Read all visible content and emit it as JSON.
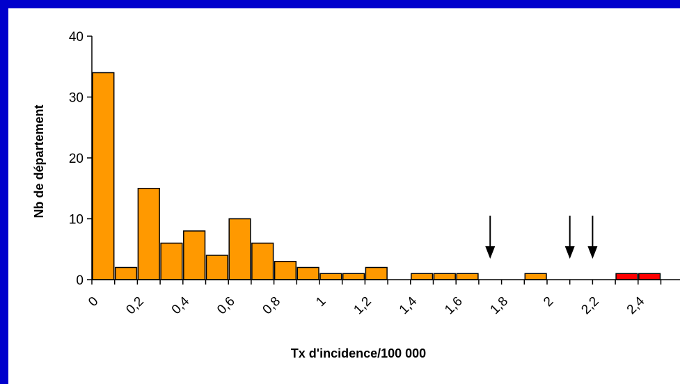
{
  "chart_data": {
    "type": "bar",
    "title": "",
    "xlabel": "Tx d'incidence/100 000",
    "ylabel": "Nb de département",
    "ylim": [
      0,
      40
    ],
    "y_ticks": [
      "0",
      "10",
      "20",
      "30",
      "40"
    ],
    "x_ticks": [
      "0",
      "0,2",
      "0,4",
      "0,6",
      "0,8",
      "1",
      "1,2",
      "1,4",
      "1,6",
      "1,8",
      "2",
      "2,2",
      "2,4"
    ],
    "bin_width": 0.1,
    "bins": [
      {
        "x": 0.0,
        "value": 34,
        "color": "#FF9900"
      },
      {
        "x": 0.1,
        "value": 2,
        "color": "#FF9900"
      },
      {
        "x": 0.2,
        "value": 15,
        "color": "#FF9900"
      },
      {
        "x": 0.3,
        "value": 6,
        "color": "#FF9900"
      },
      {
        "x": 0.4,
        "value": 8,
        "color": "#FF9900"
      },
      {
        "x": 0.5,
        "value": 4,
        "color": "#FF9900"
      },
      {
        "x": 0.6,
        "value": 10,
        "color": "#FF9900"
      },
      {
        "x": 0.7,
        "value": 6,
        "color": "#FF9900"
      },
      {
        "x": 0.8,
        "value": 3,
        "color": "#FF9900"
      },
      {
        "x": 0.9,
        "value": 2,
        "color": "#FF9900"
      },
      {
        "x": 1.0,
        "value": 1,
        "color": "#FF9900"
      },
      {
        "x": 1.1,
        "value": 1,
        "color": "#FF9900"
      },
      {
        "x": 1.2,
        "value": 2,
        "color": "#FF9900"
      },
      {
        "x": 1.3,
        "value": 0,
        "color": "#FF9900"
      },
      {
        "x": 1.4,
        "value": 1,
        "color": "#FF9900"
      },
      {
        "x": 1.5,
        "value": 1,
        "color": "#FF9900"
      },
      {
        "x": 1.6,
        "value": 1,
        "color": "#FF9900"
      },
      {
        "x": 1.7,
        "value": 0,
        "color": "#FF9900"
      },
      {
        "x": 1.8,
        "value": 0,
        "color": "#FF9900"
      },
      {
        "x": 1.9,
        "value": 1,
        "color": "#FF9900"
      },
      {
        "x": 2.0,
        "value": 0,
        "color": "#FF9900"
      },
      {
        "x": 2.1,
        "value": 0,
        "color": "#FF9900"
      },
      {
        "x": 2.2,
        "value": 0,
        "color": "#FF9900"
      },
      {
        "x": 2.3,
        "value": 1,
        "color": "#FF0000"
      },
      {
        "x": 2.4,
        "value": 1,
        "color": "#FF0000"
      }
    ],
    "arrows": [
      1.75,
      2.1,
      2.2
    ],
    "grid": false,
    "legend": "none",
    "colors": {
      "frame": "#0000CC",
      "bar": "#FF9900",
      "highlight_bar": "#FF0000",
      "background": "#FFFFFF"
    }
  }
}
